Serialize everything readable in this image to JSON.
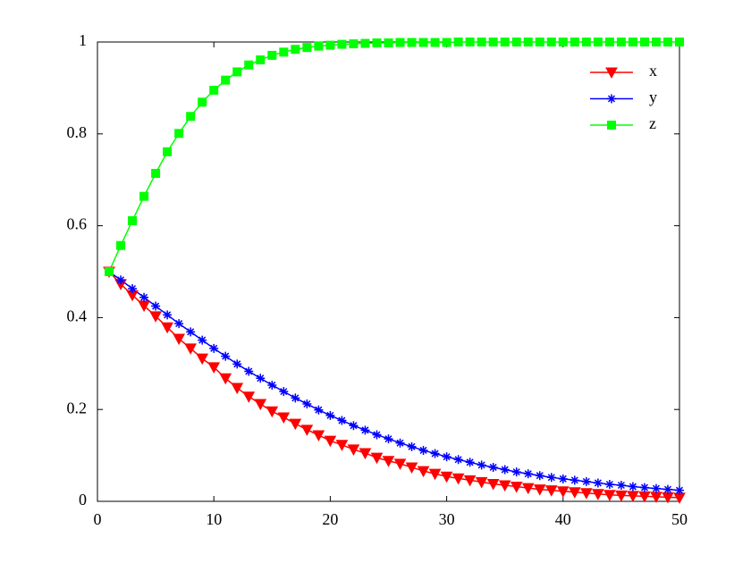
{
  "chart_data": {
    "type": "line",
    "x": [
      1,
      2,
      3,
      4,
      5,
      6,
      7,
      8,
      9,
      10,
      11,
      12,
      13,
      14,
      15,
      16,
      17,
      18,
      19,
      20,
      21,
      22,
      23,
      24,
      25,
      26,
      27,
      28,
      29,
      30,
      31,
      32,
      33,
      34,
      35,
      36,
      37,
      38,
      39,
      40,
      41,
      42,
      43,
      44,
      45,
      46,
      47,
      48,
      49,
      50
    ],
    "series": [
      {
        "name": "x",
        "color": "#ff0000",
        "marker": "triangle-down",
        "values": [
          0.5,
          0.473,
          0.449,
          0.426,
          0.403,
          0.379,
          0.354,
          0.333,
          0.311,
          0.292,
          0.268,
          0.247,
          0.228,
          0.212,
          0.196,
          0.183,
          0.169,
          0.156,
          0.144,
          0.132,
          0.123,
          0.113,
          0.105,
          0.095,
          0.088,
          0.082,
          0.074,
          0.066,
          0.06,
          0.054,
          0.05,
          0.046,
          0.042,
          0.038,
          0.035,
          0.032,
          0.029,
          0.026,
          0.024,
          0.022,
          0.02,
          0.018,
          0.016,
          0.014,
          0.013,
          0.012,
          0.011,
          0.01,
          0.009,
          0.008
        ]
      },
      {
        "name": "y",
        "color": "#0000ff",
        "marker": "asterisk",
        "values": [
          0.5,
          0.482,
          0.463,
          0.444,
          0.425,
          0.406,
          0.387,
          0.369,
          0.351,
          0.333,
          0.316,
          0.299,
          0.283,
          0.268,
          0.253,
          0.239,
          0.225,
          0.212,
          0.199,
          0.187,
          0.176,
          0.165,
          0.155,
          0.145,
          0.136,
          0.127,
          0.119,
          0.111,
          0.104,
          0.097,
          0.091,
          0.085,
          0.079,
          0.074,
          0.069,
          0.064,
          0.06,
          0.056,
          0.052,
          0.049,
          0.046,
          0.043,
          0.04,
          0.037,
          0.035,
          0.032,
          0.03,
          0.028,
          0.026,
          0.024
        ]
      },
      {
        "name": "z",
        "color": "#00ff00",
        "marker": "square",
        "values": [
          0.5,
          0.557,
          0.611,
          0.664,
          0.714,
          0.761,
          0.801,
          0.838,
          0.869,
          0.895,
          0.917,
          0.935,
          0.95,
          0.961,
          0.971,
          0.978,
          0.984,
          0.988,
          0.991,
          0.993,
          0.995,
          0.996,
          0.997,
          0.998,
          0.998,
          0.999,
          0.999,
          0.999,
          0.999,
          0.999,
          1,
          1,
          1,
          1,
          1,
          1,
          1,
          1,
          1,
          1,
          1,
          1,
          1,
          1,
          1,
          1,
          1,
          1,
          1,
          1
        ]
      }
    ],
    "xlim": [
      0,
      50
    ],
    "ylim": [
      0,
      1
    ],
    "xticks": [
      0,
      10,
      20,
      30,
      40,
      50
    ],
    "yticks": [
      0,
      0.2,
      0.4,
      0.6,
      0.8,
      1
    ],
    "grid": false,
    "legend": "northeast"
  }
}
